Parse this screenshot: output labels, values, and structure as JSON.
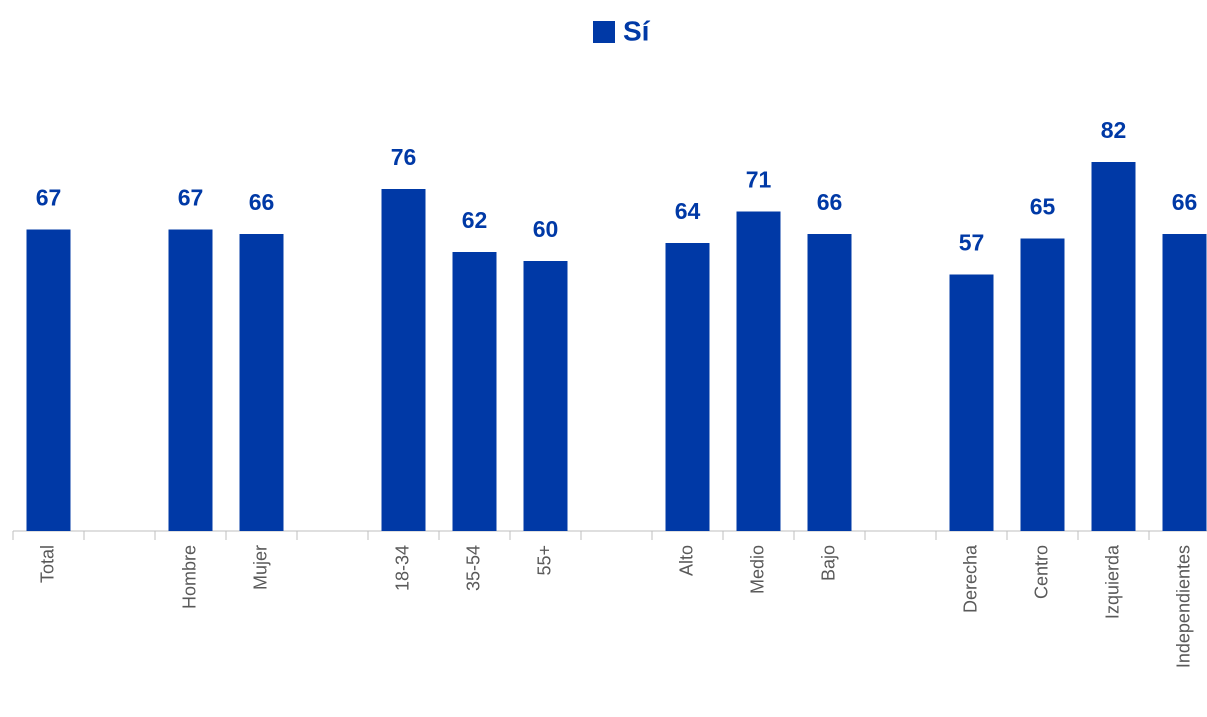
{
  "chart_data": {
    "type": "bar",
    "categories": [
      "Total",
      null,
      "Hombre",
      "Mujer",
      null,
      "18-34",
      "35-54",
      "55+",
      null,
      "Alto",
      "Medio",
      "Bajo",
      null,
      "Derecha",
      "Centro",
      "Izquierda",
      "Independientes"
    ],
    "series": [
      {
        "name": "Sí",
        "color": "#0039a6",
        "values": [
          67,
          null,
          67,
          66,
          null,
          76,
          62,
          60,
          null,
          64,
          71,
          66,
          null,
          57,
          65,
          82,
          66
        ]
      }
    ],
    "ylim": [
      0,
      100
    ],
    "legend": "top"
  }
}
